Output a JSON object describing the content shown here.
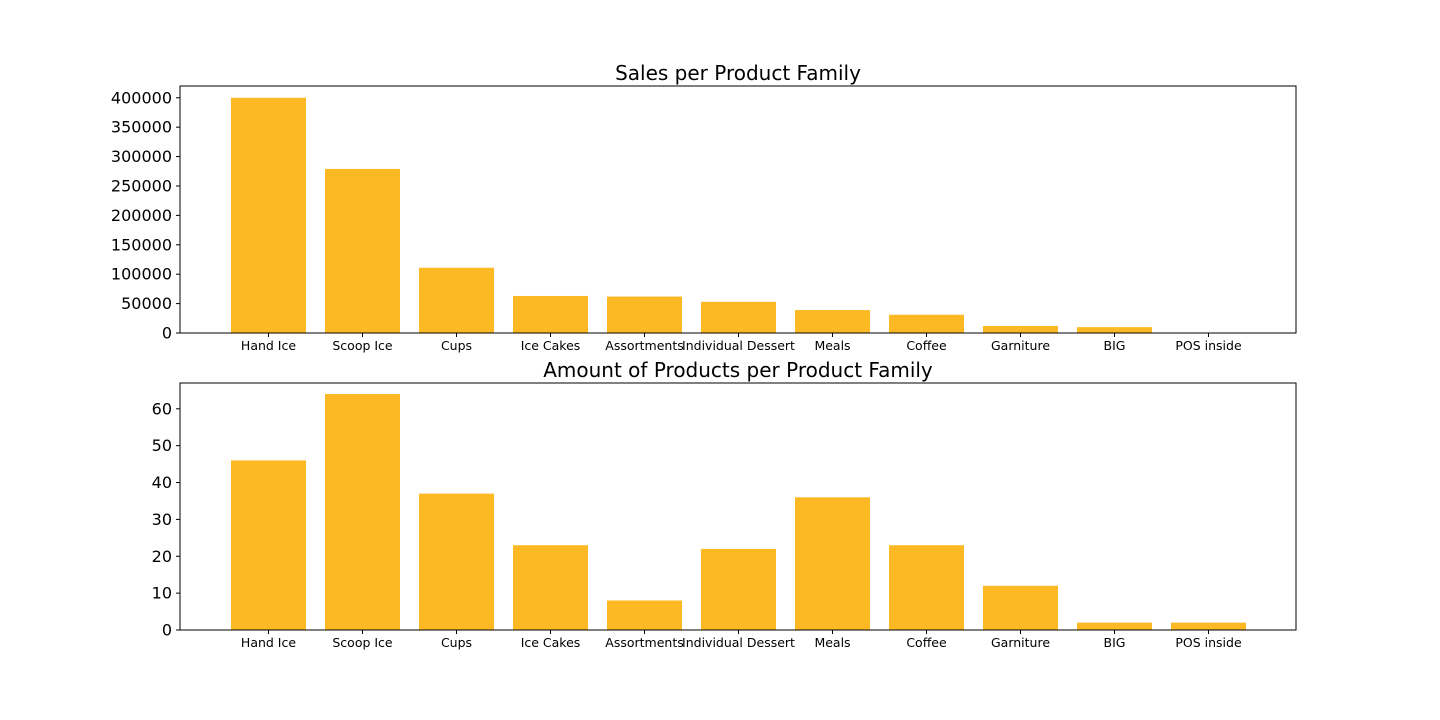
{
  "bar_color": "#fdb924",
  "chart_data": [
    {
      "type": "bar",
      "title": "Sales per Product Family",
      "xlabel": "",
      "ylabel": "",
      "categories": [
        "Hand Ice",
        "Scoop Ice",
        "Cups",
        "Ice Cakes",
        "Assortments",
        "Individual Dessert",
        "Meals",
        "Coffee",
        "Garniture",
        "BIG",
        "POS inside"
      ],
      "values": [
        400000,
        279000,
        111000,
        63000,
        62000,
        53000,
        39000,
        31000,
        12000,
        10000,
        0
      ],
      "yticks": [
        0,
        50000,
        100000,
        150000,
        200000,
        250000,
        300000,
        350000,
        400000
      ],
      "ylim": [
        0,
        420000
      ],
      "grid": false,
      "legend": "none"
    },
    {
      "type": "bar",
      "title": "Amount of Products per Product Family",
      "xlabel": "",
      "ylabel": "",
      "categories": [
        "Hand Ice",
        "Scoop Ice",
        "Cups",
        "Ice Cakes",
        "Assortments",
        "Individual Dessert",
        "Meals",
        "Coffee",
        "Garniture",
        "BIG",
        "POS inside"
      ],
      "values": [
        46,
        64,
        37,
        23,
        8,
        22,
        36,
        23,
        12,
        2,
        2
      ],
      "yticks": [
        0,
        10,
        20,
        30,
        40,
        50,
        60
      ],
      "ylim": [
        0,
        67
      ],
      "grid": false,
      "legend": "none"
    }
  ]
}
